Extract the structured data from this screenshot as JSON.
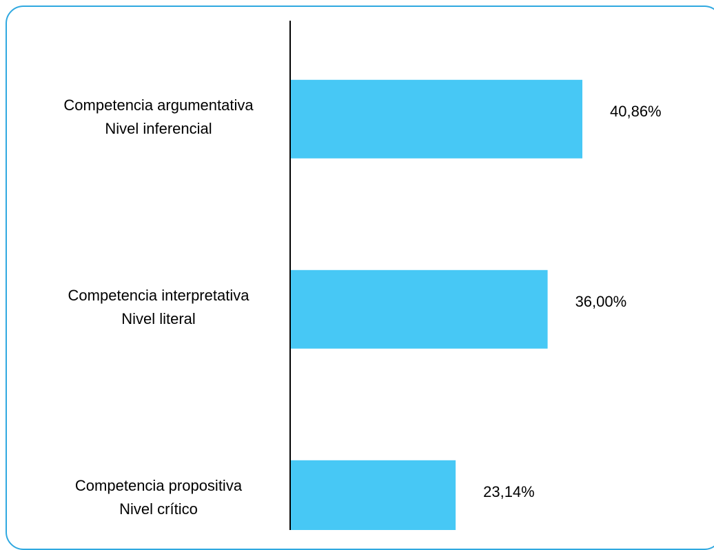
{
  "chart_data": {
    "type": "bar",
    "orientation": "horizontal",
    "categories": [
      [
        "Competencia argumentativa",
        "Nivel inferencial"
      ],
      [
        "Competencia interpretativa",
        "Nivel literal"
      ],
      [
        "Competencia propositiva",
        "Nivel crítico"
      ]
    ],
    "values": [
      40.86,
      36.0,
      23.14
    ],
    "value_labels": [
      "40,86%",
      "36,00%",
      "23,14%"
    ],
    "xlim": [
      0,
      60
    ],
    "grid": false,
    "legend": "none",
    "colors": {
      "bar": "#47c8f5",
      "axis": "#000000",
      "border": "#2fa8e0"
    }
  }
}
